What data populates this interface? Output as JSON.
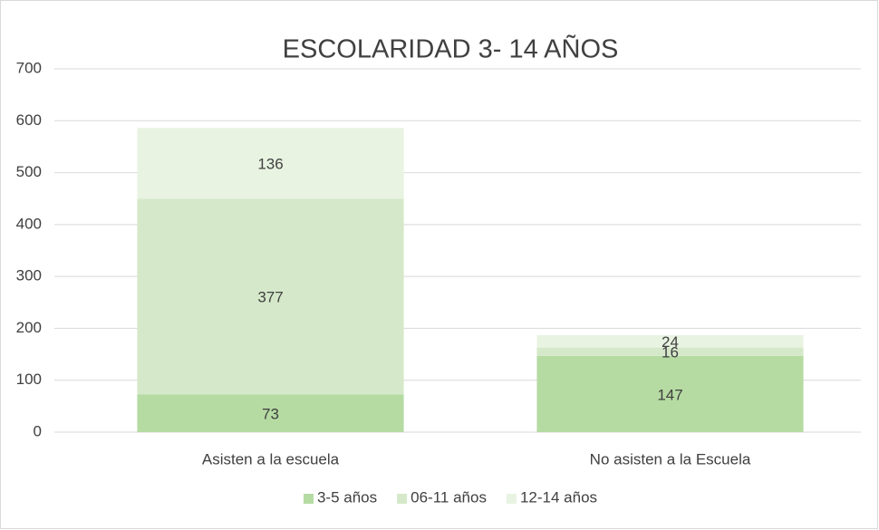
{
  "chart_data": {
    "type": "stacked_bar",
    "title": "ESCOLARIDAD 3- 14 AÑOS",
    "categories": [
      "Asisten a la escuela",
      "No asisten a la Escuela"
    ],
    "series": [
      {
        "name": "3-5 años",
        "color": "#b5dba2",
        "values": [
          73,
          147
        ]
      },
      {
        "name": "06-11 años",
        "color": "#d5e9ca",
        "values": [
          377,
          16
        ]
      },
      {
        "name": "12-14 años",
        "color": "#e8f3e1",
        "values": [
          136,
          24
        ]
      }
    ],
    "ylim": [
      0,
      700
    ],
    "yticks": [
      0,
      100,
      200,
      300,
      400,
      500,
      600,
      700
    ],
    "grid": true,
    "legend": "bottom"
  }
}
